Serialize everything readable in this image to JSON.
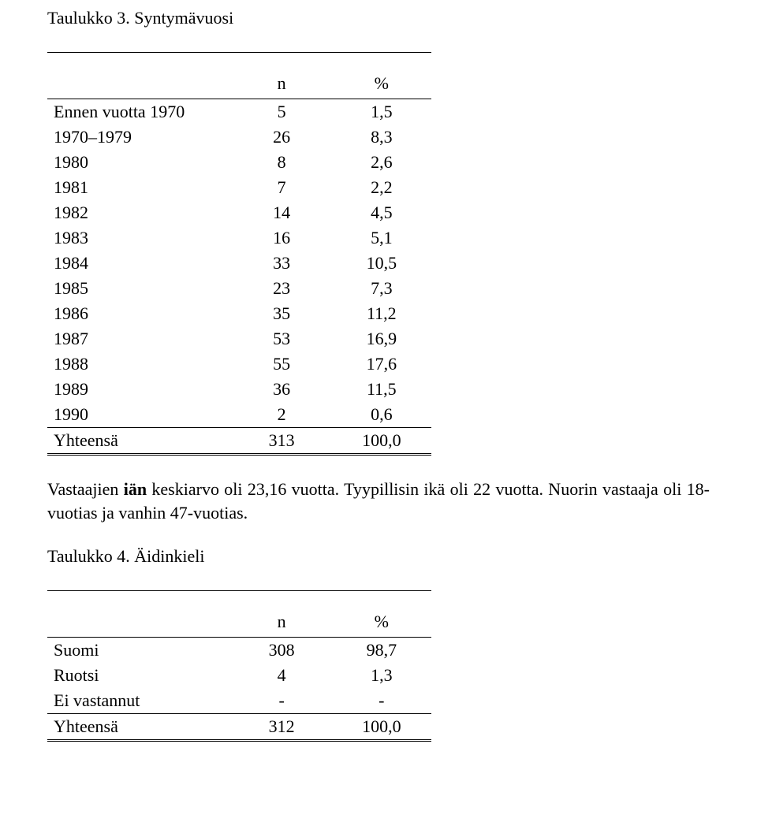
{
  "table3": {
    "title": "Taulukko 3. Syntymävuosi",
    "header": {
      "n": "n",
      "pct": "%"
    },
    "rows": [
      {
        "label": "Ennen vuotta 1970",
        "n": "5",
        "pct": "1,5"
      },
      {
        "label": "1970–1979",
        "n": "26",
        "pct": "8,3"
      },
      {
        "label": "1980",
        "n": "8",
        "pct": "2,6"
      },
      {
        "label": "1981",
        "n": "7",
        "pct": "2,2"
      },
      {
        "label": "1982",
        "n": "14",
        "pct": "4,5"
      },
      {
        "label": "1983",
        "n": "16",
        "pct": "5,1"
      },
      {
        "label": "1984",
        "n": "33",
        "pct": "10,5"
      },
      {
        "label": "1985",
        "n": "23",
        "pct": "7,3"
      },
      {
        "label": "1986",
        "n": "35",
        "pct": "11,2"
      },
      {
        "label": "1987",
        "n": "53",
        "pct": "16,9"
      },
      {
        "label": "1988",
        "n": "55",
        "pct": "17,6"
      },
      {
        "label": "1989",
        "n": "36",
        "pct": "11,5"
      },
      {
        "label": "1990",
        "n": "2",
        "pct": "0,6"
      }
    ],
    "total": {
      "label": "Yhteensä",
      "n": "313",
      "pct": "100,0"
    }
  },
  "paragraph": {
    "pre": "Vastaajien ",
    "bold": "iän",
    "post": " keskiarvo oli 23,16 vuotta. Tyypillisin ikä oli 22 vuotta. Nuorin vastaaja oli 18-vuotias ja vanhin 47-vuotias."
  },
  "table4": {
    "title": "Taulukko 4. Äidinkieli",
    "header": {
      "n": "n",
      "pct": "%"
    },
    "rows": [
      {
        "label": "Suomi",
        "n": "308",
        "pct": "98,7"
      },
      {
        "label": "Ruotsi",
        "n": "4",
        "pct": "1,3"
      },
      {
        "label": "Ei vastannut",
        "n": "-",
        "pct": "-"
      }
    ],
    "total": {
      "label": "Yhteensä",
      "n": "312",
      "pct": "100,0"
    }
  }
}
